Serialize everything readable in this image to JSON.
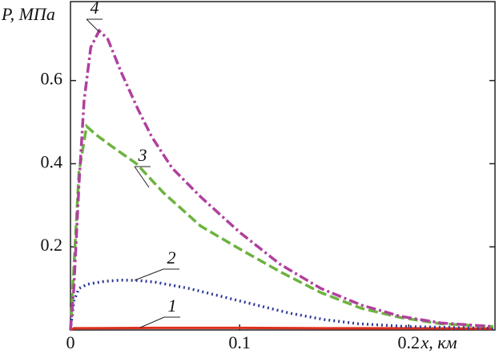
{
  "chart_data": {
    "type": "line",
    "y_label": "P, МПа",
    "x_label": "x, км",
    "xlim": [
      0,
      0.251
    ],
    "ylim": [
      0,
      0.79
    ],
    "xticks": [
      0,
      0.1,
      0.2
    ],
    "yticks": [
      0.2,
      0.4,
      0.6
    ],
    "series": [
      {
        "name": "1",
        "color": "#e0301e",
        "dash": "solid",
        "x": [
          0,
          0.002,
          0.05,
          0.1,
          0.15,
          0.2,
          0.25
        ],
        "values": [
          0,
          0.004,
          0.005,
          0.005,
          0.004,
          0.004,
          0.003
        ]
      },
      {
        "name": "2",
        "color": "#2e3a9a",
        "dash": "dot",
        "x": [
          0,
          0.002,
          0.005,
          0.01,
          0.02,
          0.03,
          0.04,
          0.05,
          0.07,
          0.09,
          0.11,
          0.13,
          0.15,
          0.17,
          0.2,
          0.25
        ],
        "values": [
          0,
          0.07,
          0.1,
          0.11,
          0.117,
          0.12,
          0.119,
          0.115,
          0.1,
          0.08,
          0.06,
          0.04,
          0.025,
          0.015,
          0.008,
          0.004
        ]
      },
      {
        "name": "3",
        "color": "#6cb33f",
        "dash": "dash",
        "x": [
          0,
          0.002,
          0.005,
          0.0095,
          0.015,
          0.025,
          0.039,
          0.055,
          0.077,
          0.1,
          0.124,
          0.148,
          0.172,
          0.195,
          0.219,
          0.25
        ],
        "values": [
          0,
          0.15,
          0.38,
          0.49,
          0.47,
          0.44,
          0.4,
          0.33,
          0.25,
          0.195,
          0.14,
          0.09,
          0.052,
          0.03,
          0.015,
          0.008
        ]
      },
      {
        "name": "4",
        "color": "#b0409e",
        "dash": "dashdot",
        "x": [
          0,
          0.002,
          0.005,
          0.008,
          0.012,
          0.017,
          0.022,
          0.03,
          0.04,
          0.048,
          0.06,
          0.077,
          0.1,
          0.124,
          0.148,
          0.172,
          0.195,
          0.219,
          0.25
        ],
        "values": [
          0,
          0.1,
          0.35,
          0.55,
          0.68,
          0.72,
          0.7,
          0.62,
          0.53,
          0.465,
          0.39,
          0.32,
          0.235,
          0.158,
          0.1,
          0.06,
          0.033,
          0.017,
          0.008
        ]
      }
    ]
  }
}
